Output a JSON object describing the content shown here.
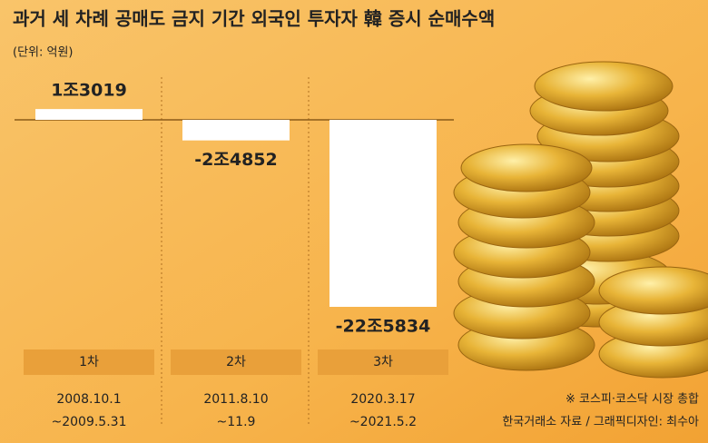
{
  "chart_data": {
    "type": "bar",
    "title": "과거 세 차례 공매도 금지 기간 외국인 투자자 韓 증시 순매수액",
    "unit": "(단위: 억원)",
    "categories": [
      "1차",
      "2차",
      "3차"
    ],
    "values": [
      13019,
      -24852,
      -225834
    ],
    "value_labels": [
      "1조3019",
      "-2조4852",
      "-22조5834"
    ],
    "period_start": [
      "2008.10.1",
      "2011.8.10",
      "2020.3.17"
    ],
    "period_end": [
      "~2009.5.31",
      "~11.9",
      "~2021.5.2"
    ],
    "color": "#ffffff",
    "notes": [
      "※ 코스피·코스닥 시장 총합",
      "한국거래소 자료 / 그래픽디자인: 최수아"
    ]
  }
}
